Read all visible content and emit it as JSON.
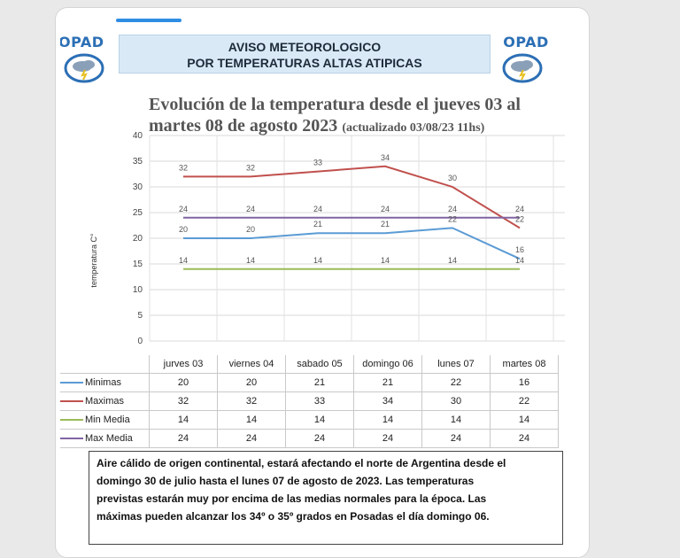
{
  "header": {
    "line1": "AVISO METEOROLOGICO",
    "line2": "POR TEMPERATURAS ALTAS ATIPICAS"
  },
  "logo": {
    "left_text": "OPAD",
    "right_text": "OPAD",
    "icon": "storm-cloud-icon"
  },
  "colors": {
    "minimas": "#5b9bd5",
    "maximas": "#c0504d",
    "min_media": "#9bbb59",
    "max_media": "#8064a2",
    "accent": "#2f8de4"
  },
  "chart_data": {
    "type": "line",
    "title_line1": "Evolución de la temperatura desde el jueves 03 al",
    "title_line2": "martes 08 de agosto 2023",
    "title_update": "(actualizado 03/08/23 11hs)",
    "ylabel": "temperatura C°",
    "ylim": [
      0,
      40
    ],
    "yticks": [
      0,
      5,
      10,
      15,
      20,
      25,
      30,
      35,
      40
    ],
    "grid": true,
    "categories": [
      "jurves 03",
      "viernes 04",
      "sabado 05",
      "domingo 06",
      "lunes 07",
      "martes 08"
    ],
    "series": [
      {
        "name": "Minimas",
        "values": [
          20,
          20,
          21,
          21,
          22,
          16
        ]
      },
      {
        "name": "Maximas",
        "values": [
          32,
          32,
          33,
          34,
          30,
          22
        ]
      },
      {
        "name": "Min Media",
        "values": [
          14,
          14,
          14,
          14,
          14,
          14
        ]
      },
      {
        "name": "Max Media",
        "values": [
          24,
          24,
          24,
          24,
          24,
          24
        ]
      }
    ]
  },
  "note": {
    "line1": "Aire cálido de origen continental, estará afectando el norte de Argentina desde el",
    "line2": "domingo 30 de julio hasta el lunes 07 de agosto de 2023. Las temperaturas",
    "line3": "previstas estarán muy por encima de las medias normales para la época. Las",
    "line4": "máximas pueden alcanzar los 34º o 35º grados en Posadas el día domingo 06."
  }
}
